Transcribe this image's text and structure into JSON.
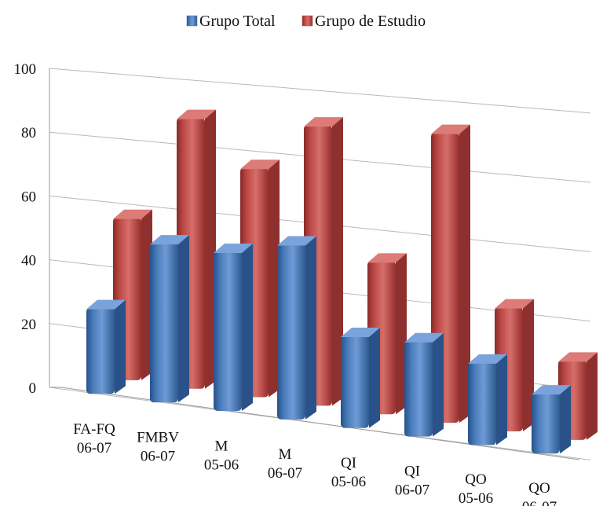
{
  "chart_data": {
    "type": "bar",
    "categories": [
      [
        "FA-FQ",
        "06-07"
      ],
      [
        "FMBV",
        "06-07"
      ],
      [
        "M",
        "05-06"
      ],
      [
        "M",
        "06-07"
      ],
      [
        "QI",
        "05-06"
      ],
      [
        "QI",
        "06-07"
      ],
      [
        "QO",
        "05-06"
      ],
      [
        "QO",
        "06-07"
      ]
    ],
    "series": [
      {
        "name": "Grupo Total",
        "color": "#4a7ebb",
        "values": [
          27,
          50,
          50,
          55,
          29,
          30,
          26,
          19
        ]
      },
      {
        "name": "Grupo de Estudio",
        "color": "#be4b48",
        "values": [
          51,
          85,
          72,
          88,
          48,
          91,
          39,
          25
        ]
      }
    ],
    "ylim": [
      0,
      100
    ],
    "yticks": [
      0,
      20,
      40,
      60,
      80,
      100
    ],
    "grid": true,
    "legend_position": "top",
    "style": "3d-columns"
  }
}
